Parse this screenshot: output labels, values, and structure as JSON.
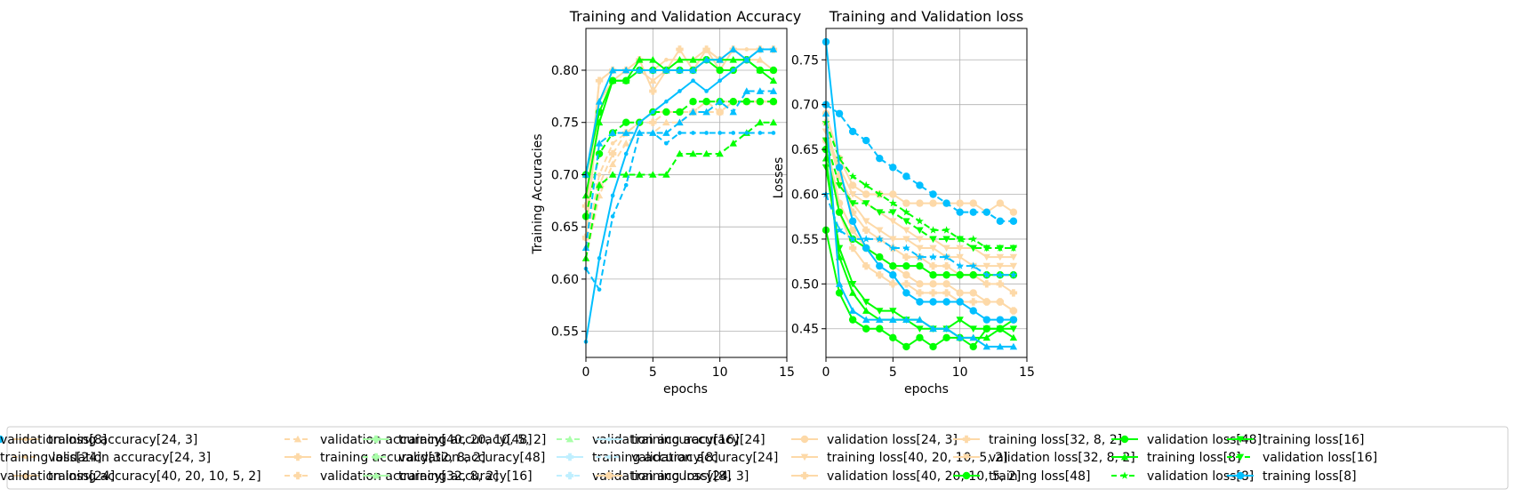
{
  "chart_data": [
    {
      "type": "line",
      "title": "Training and Validation Accuracy",
      "xlabel": "epochs",
      "ylabel": "Training Accuracies",
      "xlim": [
        0,
        15
      ],
      "ylim": [
        0.525,
        0.84
      ],
      "xticks": [
        0,
        5,
        10,
        15
      ],
      "yticks": [
        0.55,
        0.6,
        0.65,
        0.7,
        0.75,
        0.8
      ],
      "ytick_labels": [
        "0.55",
        "0.60",
        "0.65",
        "0.70",
        "0.75",
        "0.80"
      ],
      "grid": true,
      "x": [
        0,
        1,
        2,
        3,
        4,
        5,
        6,
        7,
        8,
        9,
        10,
        11,
        12,
        13,
        14
      ],
      "series": [
        {
          "name": "training accuracy[24, 3]",
          "color": "#fdd9a8",
          "dashed": false,
          "marker": "dot",
          "values": [
            0.66,
            0.79,
            0.8,
            0.8,
            0.8,
            0.8,
            0.81,
            0.81,
            0.81,
            0.82,
            0.81,
            0.82,
            0.82,
            0.82,
            0.82
          ]
        },
        {
          "name": "validation accuracy[24, 3]",
          "color": "#fdd9a8",
          "dashed": true,
          "marker": "dot",
          "values": [
            0.63,
            0.7,
            0.73,
            0.74,
            0.75,
            0.76,
            0.76,
            0.76,
            0.76,
            0.77,
            0.77,
            0.77,
            0.77,
            0.77,
            0.77
          ]
        },
        {
          "name": "training accuracy[40, 20, 10, 5, 2]",
          "color": "#fdd9a8",
          "dashed": false,
          "marker": "triangle",
          "values": [
            0.64,
            0.77,
            0.79,
            0.8,
            0.8,
            0.79,
            0.8,
            0.81,
            0.81,
            0.82,
            0.8,
            0.82,
            0.81,
            0.81,
            0.8
          ]
        },
        {
          "name": "validation accuracy[40, 20, 10, 5, 2]",
          "color": "#fdd9a8",
          "dashed": true,
          "marker": "triangle",
          "values": [
            0.62,
            0.68,
            0.71,
            0.73,
            0.74,
            0.74,
            0.75,
            0.75,
            0.76,
            0.76,
            0.76,
            0.77,
            0.77,
            0.77,
            0.77
          ]
        },
        {
          "name": "training accuracy[32, 8, 2]",
          "color": "#fdd9a8",
          "dashed": false,
          "marker": "plus",
          "values": [
            0.67,
            0.79,
            0.8,
            0.8,
            0.81,
            0.78,
            0.8,
            0.82,
            0.8,
            0.82,
            0.81,
            0.82,
            0.81,
            0.82,
            0.82
          ]
        },
        {
          "name": "validation accuracy[32, 8, 2]",
          "color": "#fdd9a8",
          "dashed": true,
          "marker": "plus",
          "values": [
            0.64,
            0.69,
            0.72,
            0.74,
            0.75,
            0.75,
            0.76,
            0.76,
            0.76,
            0.77,
            0.76,
            0.77,
            0.77,
            0.77,
            0.77
          ]
        },
        {
          "name": "training accuracy[48]",
          "color": "#00ff00",
          "dashed": false,
          "marker": "circle",
          "values": [
            0.7,
            0.76,
            0.79,
            0.79,
            0.8,
            0.8,
            0.8,
            0.8,
            0.8,
            0.81,
            0.8,
            0.8,
            0.81,
            0.8,
            0.8
          ]
        },
        {
          "name": "validation accuracy[48]",
          "color": "#00ff00",
          "dashed": true,
          "marker": "circle",
          "values": [
            0.66,
            0.72,
            0.74,
            0.75,
            0.75,
            0.76,
            0.76,
            0.76,
            0.77,
            0.77,
            0.77,
            0.77,
            0.77,
            0.77,
            0.77
          ]
        },
        {
          "name": "training accuracy[16]",
          "color": "#00ff00",
          "dashed": false,
          "marker": "triangle",
          "values": [
            0.68,
            0.75,
            0.79,
            0.79,
            0.81,
            0.81,
            0.8,
            0.81,
            0.81,
            0.81,
            0.81,
            0.81,
            0.81,
            0.8,
            0.79
          ]
        },
        {
          "name": "validation accuracy[16]",
          "color": "#00ff00",
          "dashed": true,
          "marker": "triangle",
          "values": [
            0.62,
            0.69,
            0.7,
            0.7,
            0.7,
            0.7,
            0.7,
            0.72,
            0.72,
            0.72,
            0.72,
            0.73,
            0.74,
            0.75,
            0.75
          ]
        },
        {
          "name": "training accuracy[8]",
          "color": "#00bfff",
          "dashed": false,
          "marker": "triangle",
          "values": [
            0.7,
            0.77,
            0.8,
            0.8,
            0.8,
            0.8,
            0.8,
            0.8,
            0.8,
            0.81,
            0.81,
            0.82,
            0.81,
            0.82,
            0.82
          ]
        },
        {
          "name": "validation accuracy[8]",
          "color": "#00bfff",
          "dashed": true,
          "marker": "dot",
          "values": [
            0.61,
            0.59,
            0.66,
            0.69,
            0.74,
            0.74,
            0.73,
            0.74,
            0.74,
            0.74,
            0.74,
            0.74,
            0.74,
            0.74,
            0.74
          ]
        },
        {
          "name": "training accuracy[24]",
          "color": "#00bfff",
          "dashed": false,
          "marker": "dot",
          "values": [
            0.54,
            0.62,
            0.68,
            0.72,
            0.75,
            0.76,
            0.77,
            0.78,
            0.79,
            0.78,
            0.79,
            0.8,
            0.81,
            0.82,
            0.82
          ]
        },
        {
          "name": "validation accuracy[24]",
          "color": "#00bfff",
          "dashed": true,
          "marker": "triangle",
          "values": [
            0.63,
            0.73,
            0.74,
            0.74,
            0.74,
            0.74,
            0.74,
            0.75,
            0.76,
            0.76,
            0.77,
            0.76,
            0.78,
            0.78,
            0.78
          ]
        }
      ]
    },
    {
      "type": "line",
      "title": "Training and Validation loss",
      "xlabel": "epochs",
      "ylabel": "Losses",
      "xlim": [
        0,
        15
      ],
      "ylim": [
        0.418,
        0.785
      ],
      "xticks": [
        0,
        5,
        10,
        15
      ],
      "yticks": [
        0.45,
        0.5,
        0.55,
        0.6,
        0.65,
        0.7,
        0.75
      ],
      "ytick_labels": [
        "0.45",
        "0.50",
        "0.55",
        "0.60",
        "0.65",
        "0.70",
        "0.75"
      ],
      "grid": true,
      "x": [
        0,
        1,
        2,
        3,
        4,
        5,
        6,
        7,
        8,
        9,
        10,
        11,
        12,
        13,
        14
      ],
      "series": [
        {
          "name": "training loss[24, 3]",
          "color": "#fdd9a8",
          "dashed": false,
          "marker": "circle",
          "values": [
            0.66,
            0.59,
            0.56,
            0.54,
            0.53,
            0.52,
            0.51,
            0.5,
            0.5,
            0.5,
            0.49,
            0.49,
            0.48,
            0.48,
            0.47
          ]
        },
        {
          "name": "validation loss[24, 3]",
          "color": "#fdd9a8",
          "dashed": false,
          "marker": "circle",
          "values": [
            0.69,
            0.64,
            0.61,
            0.6,
            0.6,
            0.6,
            0.59,
            0.59,
            0.59,
            0.59,
            0.59,
            0.59,
            0.58,
            0.59,
            0.58
          ]
        },
        {
          "name": "training loss[40, 20, 10, 5, 2]",
          "color": "#fdd9a8",
          "dashed": false,
          "marker": "triangle_down",
          "values": [
            0.67,
            0.62,
            0.59,
            0.57,
            0.56,
            0.55,
            0.55,
            0.54,
            0.54,
            0.53,
            0.53,
            0.52,
            0.52,
            0.52,
            0.52
          ]
        },
        {
          "name": "validation loss[40, 20, 10, 5, 2]",
          "color": "#fdd9a8",
          "dashed": false,
          "marker": "plus",
          "values": [
            0.68,
            0.62,
            0.58,
            0.56,
            0.55,
            0.54,
            0.53,
            0.53,
            0.52,
            0.52,
            0.51,
            0.51,
            0.5,
            0.5,
            0.49
          ]
        },
        {
          "name": "training loss[32, 8, 2]",
          "color": "#fdd9a8",
          "dashed": false,
          "marker": "plus",
          "values": [
            0.65,
            0.58,
            0.54,
            0.52,
            0.51,
            0.5,
            0.5,
            0.49,
            0.49,
            0.49,
            0.48,
            0.48,
            0.48,
            0.48,
            0.47
          ]
        },
        {
          "name": "validation loss[32, 8, 2]",
          "color": "#fdd9a8",
          "dashed": false,
          "marker": "triangle_down",
          "values": [
            0.67,
            0.63,
            0.6,
            0.59,
            0.58,
            0.57,
            0.56,
            0.55,
            0.55,
            0.54,
            0.54,
            0.54,
            0.53,
            0.53,
            0.53
          ]
        },
        {
          "name": "training loss[48]",
          "color": "#00ff00",
          "dashed": false,
          "marker": "circle",
          "values": [
            0.56,
            0.49,
            0.46,
            0.45,
            0.45,
            0.44,
            0.43,
            0.44,
            0.43,
            0.44,
            0.44,
            0.43,
            0.45,
            0.45,
            0.46
          ]
        },
        {
          "name": "validation loss[48]",
          "color": "#00ff00",
          "dashed": false,
          "marker": "circle",
          "values": [
            0.65,
            0.58,
            0.55,
            0.54,
            0.53,
            0.52,
            0.52,
            0.52,
            0.51,
            0.51,
            0.51,
            0.51,
            0.51,
            0.51,
            0.51
          ]
        },
        {
          "name": "training loss[8]",
          "color": "#00ff00",
          "dashed": false,
          "marker": "triangle",
          "values": [
            0.64,
            0.53,
            0.49,
            0.47,
            0.46,
            0.46,
            0.46,
            0.46,
            0.45,
            0.45,
            0.44,
            0.44,
            0.44,
            0.45,
            0.44
          ]
        },
        {
          "name": "validation loss[8]",
          "color": "#00ff00",
          "dashed": true,
          "marker": "star",
          "values": [
            0.68,
            0.64,
            0.62,
            0.61,
            0.6,
            0.59,
            0.58,
            0.57,
            0.56,
            0.56,
            0.55,
            0.55,
            0.54,
            0.54,
            0.54
          ]
        },
        {
          "name": "training loss[16]",
          "color": "#00ff00",
          "dashed": false,
          "marker": "triangle_down",
          "values": [
            0.63,
            0.54,
            0.5,
            0.48,
            0.47,
            0.47,
            0.46,
            0.45,
            0.45,
            0.45,
            0.46,
            0.45,
            0.45,
            0.45,
            0.45
          ]
        },
        {
          "name": "validation loss[16]",
          "color": "#00ff00",
          "dashed": true,
          "marker": "triangle_down",
          "values": [
            0.66,
            0.61,
            0.59,
            0.59,
            0.58,
            0.58,
            0.57,
            0.56,
            0.55,
            0.55,
            0.55,
            0.54,
            0.54,
            0.54,
            0.54
          ]
        },
        {
          "name": "training loss[8]",
          "color": "#00bfff",
          "dashed": false,
          "marker": "circle",
          "values": [
            0.77,
            0.63,
            0.57,
            0.54,
            0.52,
            0.51,
            0.49,
            0.48,
            0.48,
            0.48,
            0.48,
            0.47,
            0.46,
            0.46,
            0.46
          ]
        },
        {
          "name": "validation loss[8]",
          "color": "#00bfff",
          "dashed": true,
          "marker": "circle",
          "values": [
            0.7,
            0.69,
            0.67,
            0.66,
            0.64,
            0.63,
            0.62,
            0.61,
            0.6,
            0.59,
            0.58,
            0.58,
            0.58,
            0.57,
            0.57
          ]
        },
        {
          "name": "training loss[24]",
          "color": "#00bfff",
          "dashed": false,
          "marker": "triangle",
          "values": [
            0.69,
            0.5,
            0.47,
            0.46,
            0.46,
            0.46,
            0.46,
            0.46,
            0.45,
            0.45,
            0.44,
            0.44,
            0.43,
            0.43,
            0.43
          ]
        },
        {
          "name": "validation loss[24]",
          "color": "#00bfff",
          "dashed": true,
          "marker": "star",
          "values": [
            0.6,
            0.56,
            0.55,
            0.55,
            0.55,
            0.54,
            0.54,
            0.53,
            0.53,
            0.53,
            0.52,
            0.52,
            0.51,
            0.51,
            0.51
          ]
        }
      ]
    }
  ],
  "legend": {
    "placement": "bottom",
    "columns": 9,
    "entries": [
      {
        "label": "training accuracy[24, 3]",
        "color": "#fdd9a8",
        "dashed": false,
        "marker": "dot"
      },
      {
        "label": "validation accuracy[24, 3]",
        "color": "#fdd9a8",
        "dashed": true,
        "marker": "dot"
      },
      {
        "label": "training accuracy[40, 20, 10, 5, 2]",
        "color": "#fdd9a8",
        "dashed": false,
        "marker": "triangle"
      },
      {
        "label": "validation accuracy[40, 20, 10, 5, 2]",
        "color": "#fdd9a8",
        "dashed": true,
        "marker": "triangle"
      },
      {
        "label": "training accuracy[32, 8, 2]",
        "color": "#fdd9a8",
        "dashed": false,
        "marker": "plus"
      },
      {
        "label": "validation accuracy[32, 8, 2]",
        "color": "#fdd9a8",
        "dashed": true,
        "marker": "plus"
      },
      {
        "label": "training accuracy[48]",
        "color": "#aaffaa",
        "dashed": false,
        "marker": "plus"
      },
      {
        "label": "validation accuracy[48]",
        "color": "#aaffaa",
        "dashed": true,
        "marker": "plus"
      },
      {
        "label": "training accuracy[16]",
        "color": "#aaffaa",
        "dashed": false,
        "marker": "triangle"
      },
      {
        "label": "validation accuracy[16]",
        "color": "#aaffaa",
        "dashed": true,
        "marker": "triangle"
      },
      {
        "label": "training accuracy[8]",
        "color": "#bfefff",
        "dashed": false,
        "marker": "plus"
      },
      {
        "label": "validation accuracy[8]",
        "color": "#bfefff",
        "dashed": true,
        "marker": "plus"
      },
      {
        "label": "training accuracy[24]",
        "color": "#bfefff",
        "dashed": false,
        "marker": "dot"
      },
      {
        "label": "validation accuracy[24]",
        "color": "#bfefff",
        "dashed": true,
        "marker": "dot"
      },
      {
        "label": "training loss[24, 3]",
        "color": "#fdd9a8",
        "dashed": false,
        "marker": "circle"
      },
      {
        "label": "validation loss[24, 3]",
        "color": "#fdd9a8",
        "dashed": false,
        "marker": "circle"
      },
      {
        "label": "training loss[40, 20, 10, 5, 2]",
        "color": "#fdd9a8",
        "dashed": false,
        "marker": "triangle_down"
      },
      {
        "label": "validation loss[40, 20, 10, 5, 2]",
        "color": "#fdd9a8",
        "dashed": false,
        "marker": "plus"
      },
      {
        "label": "training loss[32, 8, 2]",
        "color": "#fdd9a8",
        "dashed": false,
        "marker": "plus"
      },
      {
        "label": "validation loss[32, 8, 2]",
        "color": "#fdd9a8",
        "dashed": false,
        "marker": "triangle_down"
      },
      {
        "label": "training loss[48]",
        "color": "#00ff00",
        "dashed": false,
        "marker": "circle"
      },
      {
        "label": "validation loss[48]",
        "color": "#00ff00",
        "dashed": false,
        "marker": "circle"
      },
      {
        "label": "training loss[8]",
        "color": "#00ff00",
        "dashed": false,
        "marker": "triangle"
      },
      {
        "label": "validation loss[8]",
        "color": "#00ff00",
        "dashed": true,
        "marker": "star"
      },
      {
        "label": "training loss[16]",
        "color": "#00ff00",
        "dashed": false,
        "marker": "triangle_down"
      },
      {
        "label": "validation loss[16]",
        "color": "#00ff00",
        "dashed": true,
        "marker": "triangle_down"
      },
      {
        "label": "training loss[8]",
        "color": "#00bfff",
        "dashed": false,
        "marker": "circle"
      },
      {
        "label": "validation loss[8]",
        "color": "#00bfff",
        "dashed": true,
        "marker": "circle"
      },
      {
        "label": "training loss[24]",
        "color": "#00bfff",
        "dashed": false,
        "marker": "triangle"
      },
      {
        "label": "validation loss[24]",
        "color": "#00bfff",
        "dashed": true,
        "marker": "star"
      }
    ]
  }
}
